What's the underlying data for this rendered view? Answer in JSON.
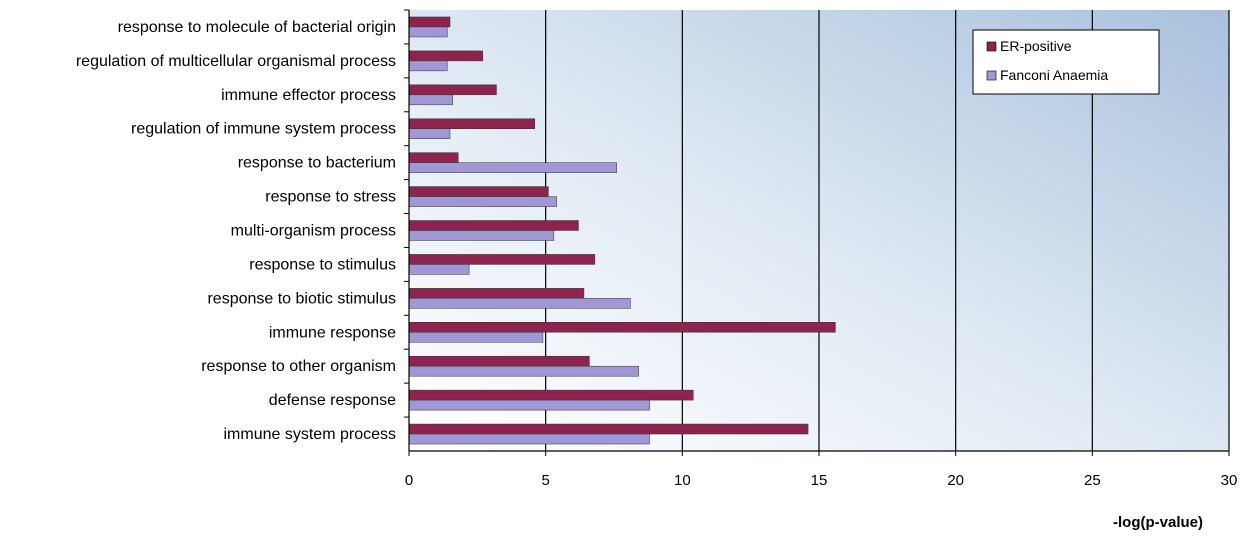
{
  "chart_data": {
    "type": "bar",
    "orientation": "horizontal",
    "title": "",
    "xlabel": "-log(p-value)",
    "ylabel": "",
    "xlim": [
      0,
      30
    ],
    "xticks": [
      0,
      5,
      10,
      15,
      20,
      25,
      30
    ],
    "grid": "vertical",
    "legend_position": "top-right",
    "categories": [
      "response to molecule of bacterial origin",
      "regulation of multicellular organismal process",
      "immune effector process",
      "regulation of immune system process",
      "response to bacterium",
      "response to stress",
      "multi-organism process",
      "response to stimulus",
      "response to biotic stimulus",
      "immune response",
      "response to other organism",
      "defense response",
      "immune system process"
    ],
    "series": [
      {
        "name": "ER-positive",
        "color": "#8e2350",
        "values": [
          1.5,
          2.7,
          3.2,
          4.6,
          1.8,
          5.1,
          6.2,
          6.8,
          6.4,
          15.6,
          6.6,
          10.4,
          14.6
        ]
      },
      {
        "name": "Fanconi Anaemia",
        "color": "#9f97d6",
        "values": [
          1.4,
          1.4,
          1.6,
          1.5,
          7.6,
          5.4,
          5.3,
          2.2,
          8.1,
          4.9,
          8.4,
          8.8,
          8.8
        ]
      }
    ]
  }
}
